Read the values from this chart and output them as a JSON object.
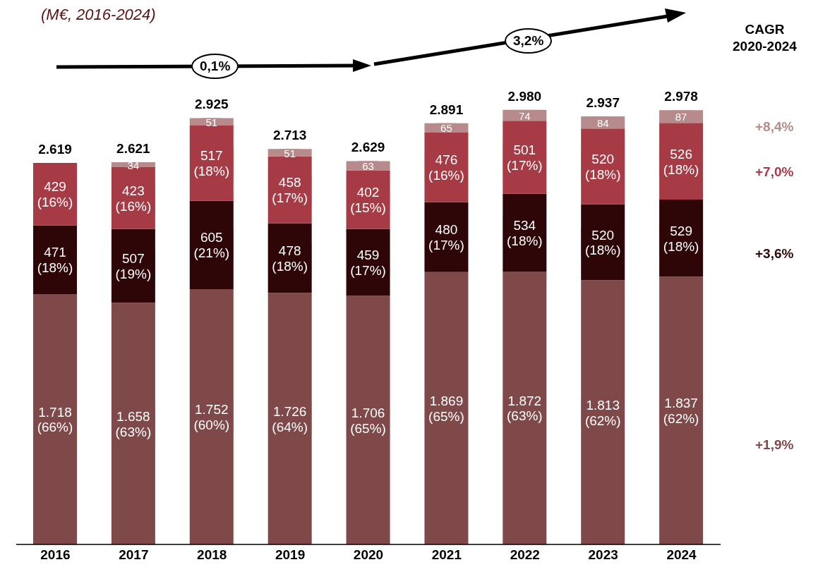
{
  "chart_data": {
    "type": "bar",
    "stacked": true,
    "subtitle": "(M€, 2016-2024)",
    "categories": [
      "2016",
      "2017",
      "2018",
      "2019",
      "2020",
      "2021",
      "2022",
      "2023",
      "2024"
    ],
    "series": [
      {
        "color": "#7f4849",
        "values": [
          1718,
          1658,
          1752,
          1726,
          1706,
          1869,
          1872,
          1813,
          1837
        ],
        "value_labels": [
          "1.718\n(66%)",
          "1.658\n(63%)",
          "1.752\n(60%)",
          "1.726\n(64%)",
          "1.706\n(65%)",
          "1.869\n(65%)",
          "1.872\n(63%)",
          "1.813\n(62%)",
          "1.837\n(62%)"
        ]
      },
      {
        "color": "#2f0607",
        "values": [
          471,
          507,
          605,
          478,
          459,
          480,
          534,
          520,
          529
        ],
        "value_labels": [
          "471\n(18%)",
          "507\n(19%)",
          "605\n(21%)",
          "478\n(18%)",
          "459\n(17%)",
          "480\n(17%)",
          "534\n(18%)",
          "520\n(18%)",
          "529\n(18%)"
        ]
      },
      {
        "color": "#a63a45",
        "values": [
          429,
          423,
          517,
          458,
          402,
          476,
          501,
          520,
          526
        ],
        "value_labels": [
          "429\n(16%)",
          "423\n(16%)",
          "517\n(18%)",
          "458\n(17%)",
          "402\n(15%)",
          "476\n(16%)",
          "501\n(17%)",
          "520\n(18%)",
          "526\n(18%)"
        ]
      },
      {
        "color": "#b78a8b",
        "values": [
          null,
          34,
          51,
          51,
          63,
          65,
          74,
          84,
          87
        ],
        "value_labels": [
          null,
          "34",
          "51",
          "51",
          "63",
          "65",
          "74",
          "84",
          "87"
        ]
      }
    ],
    "totals": [
      "2.619",
      "2.621",
      "2.925",
      "2.713",
      "2.629",
      "2.891",
      "2.980",
      "2.937",
      "2.978"
    ],
    "annotations": [
      "0,1%",
      "3,2%",
      "CAGR\n2020-2024",
      "+8,4%",
      "+7,0%",
      "+3,6%",
      "+1,9%"
    ]
  }
}
